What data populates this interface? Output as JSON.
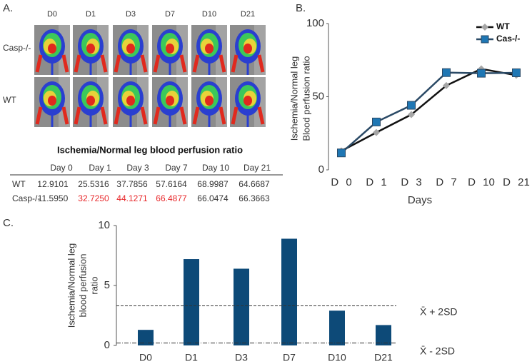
{
  "panel_a": {
    "label": "A.",
    "image_columns": [
      "D0",
      "D1",
      "D3",
      "D7",
      "D10",
      "D21"
    ],
    "image_rows": [
      "Casp-/-",
      "WT"
    ],
    "table": {
      "title": "Ischemia/Normal leg blood perfusion ratio",
      "header": [
        "Day 0",
        "Day 1",
        "Day 3",
        "Day 7",
        "Day 10",
        "Day 21"
      ],
      "rows": [
        {
          "name": "WT",
          "cells": [
            "12.9101",
            "25.5316",
            "37.7856",
            "57.6164",
            "68.9987",
            "64.6687"
          ],
          "red_cells": []
        },
        {
          "name": "Casp-/-",
          "cells": [
            "11.5950",
            "32.7250",
            "44.1271",
            "66.4877",
            "66.0474",
            "66.3663"
          ],
          "red_cells": [
            1,
            2,
            3
          ]
        }
      ],
      "red_color": "#e8272a"
    }
  },
  "chart_data": [
    {
      "type": "line",
      "label": "B.",
      "categories": [
        "D 0",
        "D 1",
        "D 3",
        "D 7",
        "D 10",
        "D 21"
      ],
      "xlabel": "Days",
      "ylabel": [
        "Ischemia/Normal leg",
        "Blood perfusion ratio"
      ],
      "ylim": [
        0,
        100
      ],
      "yticks": [
        0,
        50,
        100
      ],
      "legend": "top-right",
      "series": [
        {
          "name": "WT",
          "color": "#111111",
          "marker": "diamond",
          "marker_color": "#a6a6a6",
          "values": [
            12.9101,
            25.5316,
            37.7856,
            57.6164,
            68.9987,
            64.6687
          ]
        },
        {
          "name": "Cas-/-",
          "color": "#2b4a66",
          "marker": "square",
          "marker_color": "#1f77b4",
          "values": [
            11.595,
            32.725,
            44.1271,
            66.4877,
            66.0474,
            66.3663
          ]
        }
      ]
    },
    {
      "type": "bar",
      "label": "C.",
      "categories": [
        "D0",
        "D1",
        "D3",
        "D7",
        "D10",
        "D21"
      ],
      "ylabel": [
        "Ischemia/Normal leg",
        "blood perfusion",
        "ratio"
      ],
      "values": [
        1.3,
        7.2,
        6.4,
        8.9,
        2.9,
        1.7
      ],
      "color": "#0d4a78",
      "ylim": [
        0,
        10
      ],
      "yticks": [
        0,
        5,
        10
      ],
      "reference_lines": [
        {
          "value": 3.3,
          "label": "X̄ + 2SD",
          "style": "dashed"
        },
        {
          "value": 0.2,
          "label": "X̄ - 2SD",
          "style": "dashdot"
        }
      ]
    }
  ]
}
